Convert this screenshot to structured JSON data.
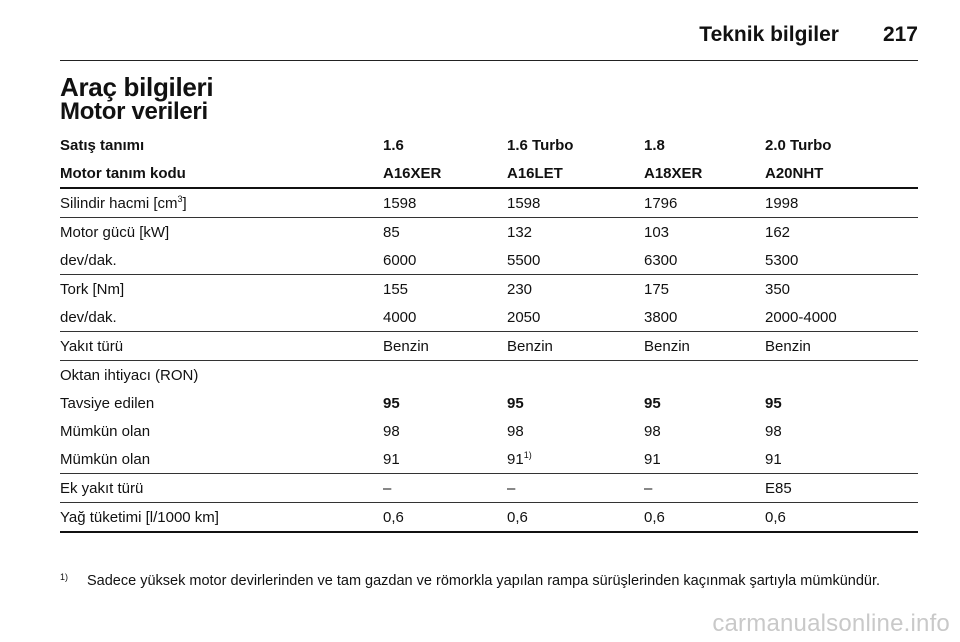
{
  "header": {
    "section": "Teknik bilgiler",
    "page_number": "217"
  },
  "title": "Araç bilgileri",
  "subtitle": "Motor verileri",
  "table": {
    "columns": [
      "Satış tanımı",
      "1.6",
      "1.6 Turbo",
      "1.8",
      "2.0 Turbo"
    ],
    "codes": [
      "Motor tanım kodu",
      "A16XER",
      "A16LET",
      "A18XER",
      "A20NHT"
    ],
    "rows": {
      "displacement": [
        "Silindir hacmi [cm",
        "3",
        "]",
        "1598",
        "1598",
        "1796",
        "1998"
      ],
      "power": [
        "Motor gücü [kW]",
        "85",
        "132",
        "103",
        "162"
      ],
      "power_rpm": [
        "dev/dak.",
        "6000",
        "5500",
        "6300",
        "5300"
      ],
      "torque": [
        "Tork [Nm]",
        "155",
        "230",
        "175",
        "350"
      ],
      "torque_rpm": [
        "dev/dak.",
        "4000",
        "2050",
        "3800",
        "2000-4000"
      ],
      "fuel": [
        "Yakıt türü",
        "Benzin",
        "Benzin",
        "Benzin",
        "Benzin"
      ],
      "octane": [
        "Oktan ihtiyacı (RON)"
      ],
      "recommended": [
        "Tavsiye edilen",
        "95",
        "95",
        "95",
        "95"
      ],
      "possible1": [
        "Mümkün olan",
        "98",
        "98",
        "98",
        "98"
      ],
      "possible2": [
        "Mümkün olan",
        "91",
        "91",
        "1)",
        "91",
        "91"
      ],
      "alt_fuel": [
        "Ek yakıt türü",
        "–",
        "–",
        "–",
        "E85"
      ],
      "oil": [
        "Yağ tüketimi [l/1000 km]",
        "0,6",
        "0,6",
        "0,6",
        "0,6"
      ]
    }
  },
  "footnote": {
    "mark": "1)",
    "text": "Sadece yüksek motor devirlerinden ve tam gazdan ve römorkla yapılan rampa sürüşlerinden kaçınmak şartıyla mümkündür."
  },
  "watermark": "carmanualsonline.info"
}
